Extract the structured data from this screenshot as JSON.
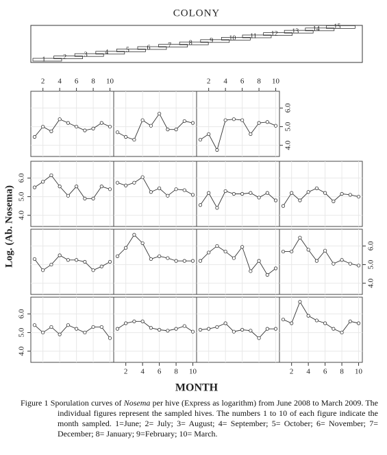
{
  "chart_data": {
    "type": "line",
    "title": "COLONY",
    "colonies": [
      1,
      2,
      3,
      4,
      5,
      6,
      7,
      8,
      9,
      10,
      11,
      12,
      13,
      14,
      15
    ],
    "x": [
      1,
      2,
      3,
      4,
      5,
      6,
      7,
      8,
      9,
      10
    ],
    "xlim": [
      0.8,
      10.2
    ],
    "xticks": [
      2,
      4,
      6,
      8,
      10
    ],
    "ylim": [
      3.4,
      6.9
    ],
    "yticks": [
      {
        "value": 4,
        "label": "4.0"
      },
      {
        "value": 5,
        "label": "5.0"
      },
      {
        "value": 6,
        "label": "6.0"
      }
    ],
    "xlabel": "MONTH",
    "ylabel": "Log. (Ab. Nosema)",
    "grid": true,
    "color": "#333333",
    "series": [
      {
        "values": [
          5.4,
          5.0,
          5.3,
          4.9,
          5.4,
          5.2,
          5.0,
          5.3,
          5.3,
          4.7
        ]
      },
      {
        "values": [
          5.2,
          5.5,
          5.6,
          5.6,
          5.25,
          5.15,
          5.1,
          5.2,
          5.35,
          5.05
        ]
      },
      {
        "values": [
          5.15,
          5.2,
          5.3,
          5.5,
          5.05,
          5.15,
          5.1,
          4.7,
          5.2,
          5.2
        ]
      },
      {
        "values": [
          5.7,
          5.5,
          6.65,
          5.9,
          5.65,
          5.5,
          5.2,
          5.0,
          5.6,
          5.5
        ]
      },
      {
        "values": [
          5.3,
          4.7,
          5.0,
          5.5,
          5.25,
          5.25,
          5.15,
          4.7,
          4.9,
          5.15
        ]
      },
      {
        "values": [
          5.45,
          5.9,
          6.6,
          6.15,
          5.3,
          5.45,
          5.35,
          5.2,
          5.2,
          5.2
        ]
      },
      {
        "values": [
          5.2,
          5.65,
          6.0,
          5.7,
          5.35,
          5.95,
          4.65,
          5.2,
          4.45,
          4.8
        ]
      },
      {
        "values": [
          5.7,
          5.7,
          6.45,
          5.8,
          5.2,
          5.75,
          5.05,
          5.25,
          5.05,
          4.95
        ]
      },
      {
        "values": [
          5.5,
          5.8,
          6.15,
          5.55,
          5.05,
          5.55,
          4.9,
          4.9,
          5.55,
          5.4
        ]
      },
      {
        "values": [
          5.75,
          5.6,
          5.75,
          6.05,
          5.25,
          5.45,
          5.05,
          5.4,
          5.35,
          5.1
        ]
      },
      {
        "values": [
          4.55,
          5.2,
          4.4,
          5.3,
          5.15,
          5.15,
          5.2,
          4.95,
          5.2,
          4.8
        ]
      },
      {
        "values": [
          4.5,
          5.2,
          4.8,
          5.25,
          5.45,
          5.2,
          4.75,
          5.15,
          5.1,
          5.0
        ]
      },
      {
        "values": [
          4.45,
          5.0,
          4.75,
          5.4,
          5.2,
          5.0,
          4.8,
          4.9,
          5.2,
          5.0
        ]
      },
      {
        "values": [
          4.7,
          4.45,
          4.3,
          5.35,
          5.05,
          5.7,
          4.85,
          4.85,
          5.3,
          5.2
        ]
      },
      {
        "values": [
          4.3,
          4.6,
          3.75,
          5.35,
          5.4,
          5.35,
          4.6,
          5.2,
          5.25,
          5.05
        ]
      }
    ]
  },
  "caption": {
    "label": "Figure 1",
    "text_a": "Sporulation curves of",
    "italic": "Nosema",
    "text_b": "per hive (Express as logarithm) from June 2008 to March 2009. The individual figures represent the sampled hives. The numbers 1 to 10 of each figure indicate the month sampled. 1=June; 2= July; 3= August; 4= September; 5= October; 6= November; 7= December; 8= January; 9=February; 10= March."
  }
}
